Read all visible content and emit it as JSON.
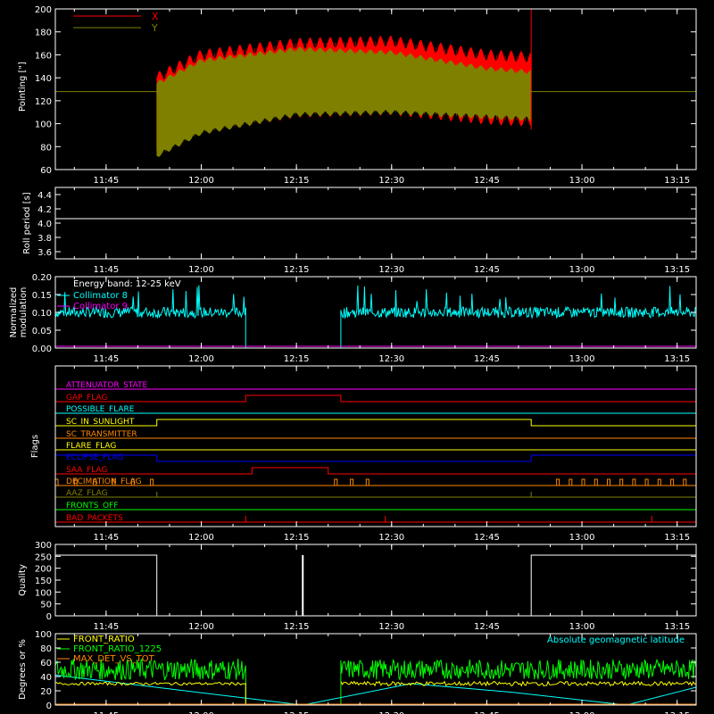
{
  "time_ticks": [
    "11:45",
    "12:00",
    "12:15",
    "12:30",
    "12:45",
    "13:00",
    "13:15"
  ],
  "colors": {
    "background": "#000000",
    "axes": "#ffffff",
    "x_series": "#ff0000",
    "y_series": "#808000",
    "cyan": "#00ffff",
    "magenta": "#ff00ff",
    "yellow": "#ffff00",
    "green": "#00ff00",
    "orange": "#ff8800",
    "blue": "#0000ff",
    "red": "#ff0000"
  },
  "chart_data": [
    {
      "id": "pointing",
      "type": "line",
      "ylabel": "Pointing [\"]",
      "ylim": [
        60,
        200
      ],
      "yticks": [
        "60",
        "80",
        "100",
        "120",
        "140",
        "160",
        "180",
        "200"
      ],
      "legend": "top-left",
      "series": [
        {
          "name": "X",
          "color": "#ff0000",
          "x": [
            "11:53",
            "12:00",
            "12:15",
            "12:30",
            "12:45",
            "12:52"
          ],
          "upper": [
            140,
            160,
            170,
            172,
            160,
            158
          ],
          "lower": [
            78,
            95,
            110,
            112,
            104,
            102
          ]
        },
        {
          "name": "Y",
          "color": "#808000",
          "x": [
            "11:53",
            "12:00",
            "12:15",
            "12:30",
            "12:45",
            "12:52"
          ],
          "upper": [
            135,
            155,
            165,
            162,
            148,
            145
          ],
          "lower": [
            72,
            92,
            108,
            110,
            106,
            104
          ],
          "reference_line": 128
        }
      ]
    },
    {
      "id": "roll-period",
      "type": "line",
      "ylabel": "Roll period [s]",
      "ylim": [
        3.5,
        4.5
      ],
      "yticks": [
        "3.6",
        "3.8",
        "4.0",
        "4.2",
        "4.4"
      ],
      "series": [
        {
          "x": [
            "11:37",
            "13:18"
          ],
          "values": [
            4.05,
            4.05
          ]
        }
      ]
    },
    {
      "id": "modulation",
      "type": "line",
      "ylabel": [
        "Normalized",
        "modulation"
      ],
      "ylim": [
        0.0,
        0.2
      ],
      "yticks": [
        "0.00",
        "0.05",
        "0.10",
        "0.15",
        "0.20"
      ],
      "legend_title": "Energy band: 12-25 keV",
      "series": [
        {
          "name": "Collimator 8",
          "color": "#00ffff",
          "segments": [
            {
              "from": "11:37",
              "to": "12:07",
              "value": 0.1
            },
            {
              "from": "12:22",
              "to": "13:18",
              "value": 0.1
            }
          ]
        },
        {
          "name": "Collimator 9",
          "color": "#ff00ff",
          "values": [
            0,
            0
          ]
        }
      ]
    },
    {
      "id": "flags",
      "type": "line",
      "ylabel": "Flags",
      "flags": [
        {
          "name": "ATTENUATOR_STATE",
          "color": "#ff00ff",
          "high": []
        },
        {
          "name": "GAP_FLAG",
          "color": "#ff0000",
          "high": [
            [
              "12:07",
              "12:22"
            ]
          ]
        },
        {
          "name": "POSSIBLE_FLARE",
          "color": "#00ffff",
          "high": []
        },
        {
          "name": "SC_IN_SUNLIGHT",
          "color": "#ffff00",
          "high": [
            [
              "11:53",
              "12:52"
            ]
          ]
        },
        {
          "name": "SC_TRANSMITTER",
          "color": "#ff8800",
          "high": []
        },
        {
          "name": "FLARE_FLAG",
          "color": "#ffff00",
          "high": []
        },
        {
          "name": "ECLIPSE_FLAG",
          "color": "#0000ff",
          "high": [
            [
              "11:37",
              "11:53"
            ],
            [
              "12:52",
              "13:18"
            ]
          ]
        },
        {
          "name": "SAA_FLAG",
          "color": "#ff0000",
          "high": [
            [
              "12:08",
              "12:20"
            ]
          ]
        },
        {
          "name": "DECIMATION_FLAG",
          "color": "#ff8800",
          "high": []
        },
        {
          "name": "AAZ_FLAG",
          "color": "#808000",
          "high": []
        },
        {
          "name": "FRONTS_OFF",
          "color": "#00ff00",
          "high": []
        },
        {
          "name": "BAD_PACKETS",
          "color": "#ff0000",
          "high": []
        }
      ]
    },
    {
      "id": "quality",
      "type": "bar",
      "ylabel": "Quality",
      "ylim": [
        0,
        300
      ],
      "yticks": [
        "0",
        "50",
        "100",
        "150",
        "200",
        "250",
        "300"
      ],
      "series": [
        {
          "segments": [
            {
              "from": "11:37",
              "to": "11:53",
              "value": 255
            },
            {
              "from": "12:16",
              "to": "12:16",
              "value": 255
            },
            {
              "from": "12:52",
              "to": "13:18",
              "value": 255
            }
          ]
        }
      ]
    },
    {
      "id": "ratios",
      "type": "line",
      "ylabel": "Degrees or %",
      "ylim": [
        0,
        100
      ],
      "yticks": [
        "0",
        "20",
        "40",
        "60",
        "80",
        "100"
      ],
      "annotation": "Absolute geomagnetic latitude",
      "series": [
        {
          "name": "FRONT_RATIO",
          "color": "#ffff00",
          "approx_value": 30
        },
        {
          "name": "FRONT_RATIO_1225",
          "color": "#00ff00",
          "approx_value": 50
        },
        {
          "name": "MAX_DET_VS_TOT",
          "color": "#ff8800",
          "approx_value": 0
        }
      ]
    }
  ]
}
